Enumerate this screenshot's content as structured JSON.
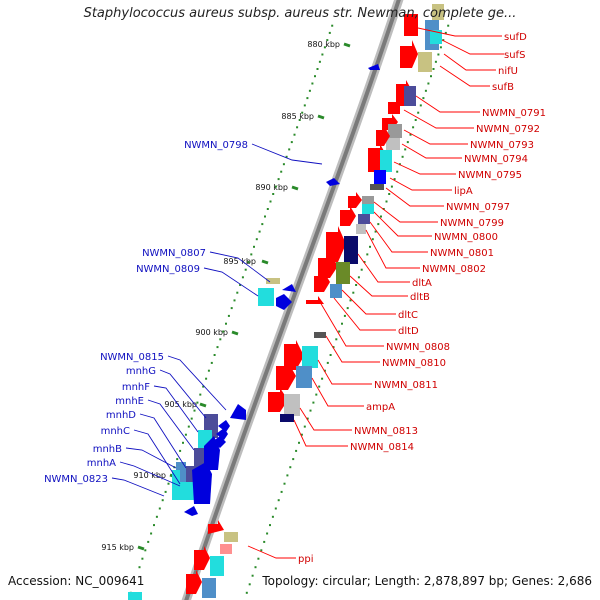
{
  "title": "Staphylococcus aureus subsp. aureus str. Newman, complete ge...",
  "accession_label": "Accession: NC_009641",
  "topology_label": "Topology: circular; Length: 2,878,897 bp; Genes: 2,686",
  "colors": {
    "backbone": "#808080",
    "ticks": "#2a8a2a",
    "forward_gene": "#ff0000",
    "reverse_gene": "#0000dd",
    "forward_label": "#d00000",
    "reverse_label": "#1010c0",
    "cyan": "#22dddd",
    "steelblue": "#4f8fc8",
    "khaki": "#c8c282",
    "gray": "#999999",
    "darkslate": "#4c4c9a",
    "navy": "#0a0a6a",
    "olive": "#6a8a28",
    "pink": "#ff9090",
    "lightgray": "#c0c0c0"
  },
  "ticks": [
    {
      "label": "880 kbp"
    },
    {
      "label": "885 kbp"
    },
    {
      "label": "890 kbp"
    },
    {
      "label": "895 kbp"
    },
    {
      "label": "900 kbp"
    },
    {
      "label": "905 kbp"
    },
    {
      "label": "910 kbp"
    },
    {
      "label": "915 kbp"
    }
  ],
  "right_labels": [
    {
      "text": "sufD"
    },
    {
      "text": "sufS"
    },
    {
      "text": "nifU"
    },
    {
      "text": "sufB"
    },
    {
      "text": "NWMN_0791"
    },
    {
      "text": "NWMN_0792"
    },
    {
      "text": "NWMN_0793"
    },
    {
      "text": "NWMN_0794"
    },
    {
      "text": "NWMN_0795"
    },
    {
      "text": "lipA"
    },
    {
      "text": "NWMN_0797"
    },
    {
      "text": "NWMN_0799"
    },
    {
      "text": "NWMN_0800"
    },
    {
      "text": "NWMN_0801"
    },
    {
      "text": "NWMN_0802"
    },
    {
      "text": "dltA"
    },
    {
      "text": "dltB"
    },
    {
      "text": "dltC"
    },
    {
      "text": "dltD"
    },
    {
      "text": "NWMN_0808"
    },
    {
      "text": "NWMN_0810"
    },
    {
      "text": "NWMN_0811"
    },
    {
      "text": "ampA"
    },
    {
      "text": "NWMN_0813"
    },
    {
      "text": "NWMN_0814"
    },
    {
      "text": "ppi"
    }
  ],
  "left_labels": [
    {
      "text": "NWMN_0798"
    },
    {
      "text": "NWMN_0807"
    },
    {
      "text": "NWMN_0809"
    },
    {
      "text": "NWMN_0815"
    },
    {
      "text": "mnhG"
    },
    {
      "text": "mnhF"
    },
    {
      "text": "mnhE"
    },
    {
      "text": "mnhD"
    },
    {
      "text": "mnhC"
    },
    {
      "text": "mnhB"
    },
    {
      "text": "mnhA"
    },
    {
      "text": "NWMN_0823"
    }
  ]
}
